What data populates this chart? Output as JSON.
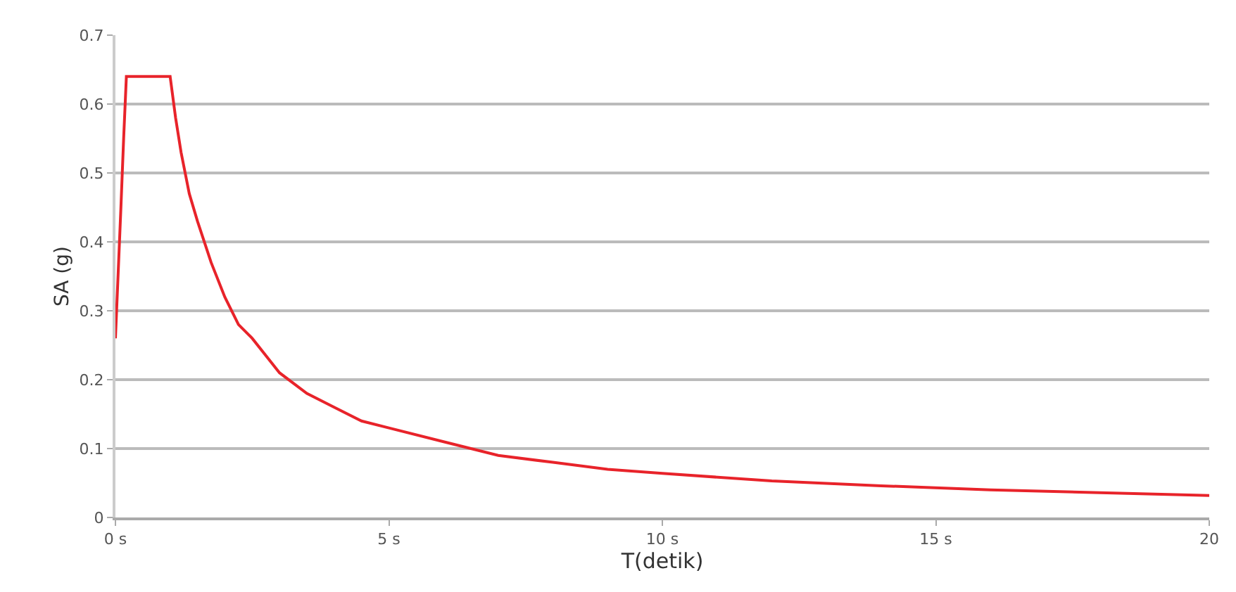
{
  "chart_data": {
    "type": "line",
    "xlabel": "T(detik)",
    "ylabel": "SA (g)",
    "x": [
      0,
      0.1,
      0.15,
      0.2,
      1.0,
      1.1,
      1.2,
      1.35,
      1.5,
      1.75,
      2,
      2.25,
      2.5,
      3,
      3.5,
      4,
      4.5,
      5,
      6,
      7,
      8,
      9,
      10,
      12,
      14,
      16,
      18,
      20
    ],
    "series": [
      {
        "color": "#e8232a",
        "values": [
          0.26,
          0.45,
          0.55,
          0.64,
          0.64,
          0.58,
          0.53,
          0.47,
          0.43,
          0.37,
          0.32,
          0.28,
          0.26,
          0.21,
          0.18,
          0.16,
          0.14,
          0.13,
          0.11,
          0.09,
          0.08,
          0.07,
          0.064,
          0.053,
          0.046,
          0.04,
          0.036,
          0.032
        ]
      }
    ],
    "xlim": [
      0,
      20
    ],
    "xticks": [
      {
        "value": 0,
        "label": "0 s"
      },
      {
        "value": 5,
        "label": "5 s"
      },
      {
        "value": 10,
        "label": "10 s"
      },
      {
        "value": 15,
        "label": "15 s"
      },
      {
        "value": 20,
        "label": "20"
      }
    ],
    "ylim": [
      0,
      0.7
    ],
    "yticks": [
      0,
      0.1,
      0.2,
      0.3,
      0.4,
      0.5,
      0.6,
      0.7
    ],
    "grid": "y",
    "marker": "none",
    "line_style": "solid"
  }
}
